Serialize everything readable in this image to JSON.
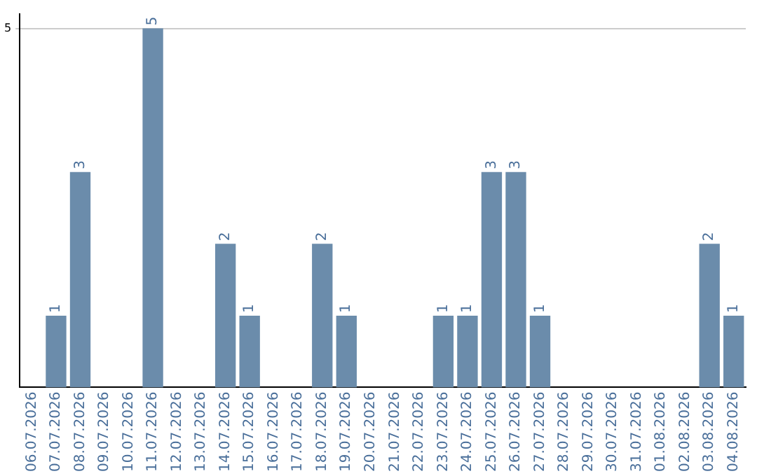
{
  "chart_data": {
    "type": "bar",
    "categories": [
      "06.07.2026",
      "07.07.2026",
      "08.07.2026",
      "09.07.2026",
      "10.07.2026",
      "11.07.2026",
      "12.07.2026",
      "13.07.2026",
      "14.07.2026",
      "15.07.2026",
      "16.07.2026",
      "17.07.2026",
      "18.07.2026",
      "19.07.2026",
      "20.07.2026",
      "21.07.2026",
      "22.07.2026",
      "23.07.2026",
      "24.07.2026",
      "25.07.2026",
      "26.07.2026",
      "27.07.2026",
      "28.07.2026",
      "29.07.2026",
      "30.07.2026",
      "31.07.2026",
      "01.08.2026",
      "02.08.2026",
      "03.08.2026",
      "04.08.2026"
    ],
    "values": [
      0,
      1,
      3,
      0,
      0,
      5,
      0,
      0,
      2,
      1,
      0,
      0,
      2,
      1,
      0,
      0,
      0,
      1,
      1,
      3,
      3,
      1,
      0,
      0,
      0,
      0,
      0,
      0,
      2,
      1
    ],
    "value_labels": [
      null,
      "1",
      "3",
      null,
      null,
      "5",
      null,
      null,
      "2",
      "1",
      null,
      null,
      "2",
      "1",
      null,
      null,
      null,
      "1",
      "1",
      "3",
      "3",
      "1",
      null,
      null,
      null,
      null,
      null,
      null,
      "2",
      "1"
    ],
    "color": "#6b8cab",
    "ylim": [
      0,
      5.2
    ],
    "yticks": [
      5
    ],
    "grid": "y",
    "legend": false
  }
}
